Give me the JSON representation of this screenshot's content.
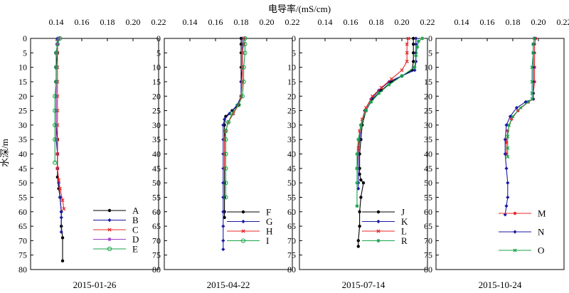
{
  "figure": {
    "x_axis_label": "电导率/(mS/cm)",
    "y_axis_label": "水深/m"
  },
  "chart_data": [
    {
      "type": "line",
      "date": "2015-01-26",
      "xlabel": "电导率/(mS/cm)",
      "ylabel": "水深/m",
      "xlim": [
        0.12,
        0.22
      ],
      "ylim": [
        0,
        80
      ],
      "y_reversed": true,
      "x_ticks": [
        "0.14",
        "0.16",
        "0.18",
        "0.20",
        "0.22"
      ],
      "y_ticks": [
        "0",
        "5",
        "10",
        "15",
        "20",
        "25",
        "30",
        "35",
        "40",
        "45",
        "50",
        "55",
        "60",
        "65",
        "70",
        "75",
        "80"
      ],
      "legend_position": "bottom-right",
      "series": [
        {
          "name": "A",
          "color": "#000000",
          "marker": "dot",
          "x": [
            0.142,
            0.141,
            0.141,
            0.14,
            0.14,
            0.14,
            0.14,
            0.14,
            0.141,
            0.141,
            0.141,
            0.141,
            0.142,
            0.143,
            0.144,
            0.144,
            0.145,
            0.145
          ],
          "y": [
            0,
            2,
            5,
            10,
            15,
            20,
            25,
            30,
            35,
            40,
            45,
            48,
            52,
            55,
            60,
            65,
            69,
            77
          ]
        },
        {
          "name": "B",
          "color": "#1a1aa6",
          "marker": "diamond",
          "x": [
            0.141,
            0.141,
            0.14,
            0.14,
            0.14,
            0.14,
            0.14,
            0.14,
            0.14,
            0.141,
            0.141,
            0.142,
            0.143,
            0.144,
            0.144,
            0.144
          ],
          "y": [
            0,
            2,
            5,
            10,
            15,
            20,
            25,
            30,
            35,
            40,
            45,
            50,
            55,
            60,
            62,
            67
          ]
        },
        {
          "name": "C",
          "color": "#e8282a",
          "marker": "x",
          "x": [
            0.142,
            0.141,
            0.141,
            0.141,
            0.141,
            0.141,
            0.141,
            0.141,
            0.141,
            0.141,
            0.141,
            0.142,
            0.143,
            0.145,
            0.146
          ],
          "y": [
            0,
            2,
            5,
            10,
            15,
            20,
            25,
            30,
            35,
            40,
            45,
            49,
            52,
            56,
            59
          ]
        },
        {
          "name": "D",
          "color": "#9b3fc9",
          "marker": "star",
          "x": [
            0.142,
            0.141,
            0.14,
            0.14,
            0.14,
            0.14,
            0.14,
            0.14,
            0.14
          ],
          "y": [
            0,
            2,
            5,
            10,
            15,
            20,
            25,
            30,
            35
          ]
        },
        {
          "name": "E",
          "color": "#16a34a",
          "marker": "circle",
          "x": [
            0.143,
            0.141,
            0.14,
            0.14,
            0.14,
            0.139,
            0.139,
            0.139,
            0.139,
            0.139
          ],
          "y": [
            0,
            2,
            5,
            10,
            15,
            20,
            25,
            30,
            35,
            43
          ]
        }
      ]
    },
    {
      "type": "line",
      "date": "2015-04-22",
      "xlabel": "电导率/(mS/cm)",
      "ylabel": "水深/m",
      "xlim": [
        0.12,
        0.22
      ],
      "ylim": [
        0,
        80
      ],
      "y_reversed": true,
      "x_ticks": [
        "0.14",
        "0.16",
        "0.18",
        "0.20",
        "0.22"
      ],
      "y_ticks": [
        "0",
        "5",
        "10",
        "15",
        "20",
        "25",
        "30",
        "35",
        "40",
        "45",
        "50",
        "55",
        "60",
        "65",
        "70",
        "75",
        "80"
      ],
      "legend_position": "bottom-right",
      "series": [
        {
          "name": "F",
          "color": "#000000",
          "marker": "dot",
          "x": [
            0.18,
            0.18,
            0.18,
            0.18,
            0.18,
            0.18,
            0.178,
            0.173,
            0.168,
            0.167,
            0.167,
            0.167,
            0.167,
            0.167,
            0.167,
            0.167,
            0.167
          ],
          "y": [
            0,
            2,
            5,
            10,
            15,
            20,
            23,
            25,
            27,
            30,
            35,
            40,
            45,
            50,
            55,
            60,
            62
          ]
        },
        {
          "name": "G",
          "color": "#1a1aa6",
          "marker": "diamond",
          "x": [
            0.181,
            0.181,
            0.181,
            0.181,
            0.18,
            0.18,
            0.177,
            0.171,
            0.167,
            0.166,
            0.166,
            0.166,
            0.166,
            0.166,
            0.166,
            0.166,
            0.166,
            0.166,
            0.166
          ],
          "y": [
            0,
            2,
            5,
            10,
            15,
            20,
            23,
            26,
            28,
            30,
            35,
            40,
            45,
            50,
            55,
            60,
            65,
            70,
            73
          ]
        },
        {
          "name": "H",
          "color": "#e8282a",
          "marker": "x",
          "x": [
            0.182,
            0.182,
            0.181,
            0.181,
            0.181,
            0.18,
            0.178,
            0.174,
            0.17,
            0.168,
            0.167,
            0.167,
            0.167
          ],
          "y": [
            0,
            2,
            5,
            10,
            15,
            20,
            23,
            26,
            29,
            32,
            35,
            40,
            45
          ]
        },
        {
          "name": "I",
          "color": "#16a34a",
          "marker": "circle",
          "x": [
            0.183,
            0.183,
            0.183,
            0.182,
            0.182,
            0.181,
            0.178,
            0.173,
            0.17,
            0.168,
            0.168,
            0.168,
            0.168,
            0.168,
            0.168
          ],
          "y": [
            0,
            2,
            5,
            10,
            15,
            20,
            23,
            26,
            29,
            32,
            35,
            40,
            45,
            50,
            55
          ]
        }
      ]
    },
    {
      "type": "line",
      "date": "2015-07-14",
      "xlabel": "电导率/(mS/cm)",
      "ylabel": "水深/m",
      "xlim": [
        0.12,
        0.22
      ],
      "ylim": [
        0,
        80
      ],
      "y_reversed": true,
      "x_ticks": [
        "0.14",
        "0.16",
        "0.18",
        "0.20",
        "0.22"
      ],
      "y_ticks": [
        "0",
        "5",
        "10",
        "15",
        "20",
        "25",
        "30",
        "35",
        "40",
        "45",
        "50",
        "55",
        "60",
        "65",
        "70",
        "75",
        "80"
      ],
      "legend_position": "bottom-right",
      "series": [
        {
          "name": "J",
          "color": "#000000",
          "marker": "dot",
          "x": [
            0.209,
            0.209,
            0.209,
            0.209,
            0.208,
            0.2,
            0.192,
            0.184,
            0.177,
            0.172,
            0.169,
            0.168,
            0.167,
            0.167,
            0.167,
            0.168,
            0.17,
            0.168,
            0.167,
            0.167,
            0.166,
            0.166
          ],
          "y": [
            0,
            2,
            5,
            8,
            11,
            13,
            15,
            18,
            21,
            25,
            30,
            35,
            40,
            45,
            47,
            49,
            50,
            55,
            60,
            65,
            70,
            72
          ]
        },
        {
          "name": "K",
          "color": "#1a1aa6",
          "marker": "diamond",
          "x": [
            0.211,
            0.211,
            0.211,
            0.211,
            0.21,
            0.2,
            0.19,
            0.182,
            0.176,
            0.171,
            0.168,
            0.167,
            0.166,
            0.166,
            0.166,
            0.166
          ],
          "y": [
            0,
            2,
            5,
            8,
            11,
            13,
            15,
            18,
            21,
            25,
            30,
            35,
            40,
            45,
            50,
            52
          ]
        },
        {
          "name": "L",
          "color": "#e8282a",
          "marker": "x",
          "x": [
            0.205,
            0.204,
            0.204,
            0.204,
            0.2,
            0.192,
            0.184,
            0.177,
            0.172,
            0.169,
            0.167,
            0.166,
            0.165
          ],
          "y": [
            0,
            2,
            5,
            8,
            11,
            14,
            17,
            20,
            24,
            28,
            32,
            38,
            45
          ]
        },
        {
          "name": "R",
          "color": "#16a34a",
          "marker": "star",
          "x": [
            0.216,
            0.213,
            0.212,
            0.211,
            0.21,
            0.2,
            0.19,
            0.182,
            0.176,
            0.172,
            0.168,
            0.166,
            0.165,
            0.165,
            0.165,
            0.165
          ],
          "y": [
            0,
            1,
            3,
            6,
            10,
            13,
            16,
            19,
            22,
            25,
            30,
            35,
            40,
            45,
            50,
            58
          ]
        }
      ]
    },
    {
      "type": "line",
      "date": "2015-10-24",
      "xlabel": "电导率/(mS/cm)",
      "ylabel": "水深/m",
      "xlim": [
        0.12,
        0.22
      ],
      "ylim": [
        0,
        80
      ],
      "y_reversed": true,
      "x_ticks": [
        "0.14",
        "0.16",
        "0.18",
        "0.20",
        "0.22"
      ],
      "y_ticks": [
        "0",
        "5",
        "10",
        "15",
        "20",
        "25",
        "30",
        "35",
        "40",
        "45",
        "50",
        "55",
        "60",
        "65",
        "70",
        "75",
        "80"
      ],
      "legend_position": "bottom-right",
      "series": [
        {
          "name": "M",
          "color": "#e8282a",
          "marker": "dot",
          "x": [
            0.198,
            0.197,
            0.197,
            0.197,
            0.197,
            0.196,
            0.196,
            0.192,
            0.184,
            0.179,
            0.176,
            0.175,
            0.175
          ],
          "y": [
            0,
            2,
            5,
            10,
            15,
            19,
            21,
            22,
            25,
            28,
            32,
            36,
            40
          ]
        },
        {
          "name": "N",
          "color": "#1a1aa6",
          "marker": "diamond",
          "x": [
            0.197,
            0.196,
            0.196,
            0.196,
            0.196,
            0.196,
            0.196,
            0.19,
            0.183,
            0.178,
            0.175,
            0.174,
            0.174,
            0.175,
            0.176,
            0.176,
            0.175,
            0.174
          ],
          "y": [
            0,
            2,
            5,
            10,
            15,
            19,
            21,
            22,
            24,
            27,
            30,
            35,
            40,
            45,
            50,
            55,
            58,
            61
          ]
        },
        {
          "name": "O",
          "color": "#16a34a",
          "marker": "x",
          "x": [
            0.197,
            0.196,
            0.196,
            0.195,
            0.195,
            0.195,
            0.195,
            0.192,
            0.186,
            0.18,
            0.177,
            0.176,
            0.176,
            0.176
          ],
          "y": [
            0,
            2,
            5,
            10,
            15,
            19,
            21,
            22,
            24,
            27,
            30,
            34,
            38,
            41
          ]
        }
      ]
    }
  ]
}
